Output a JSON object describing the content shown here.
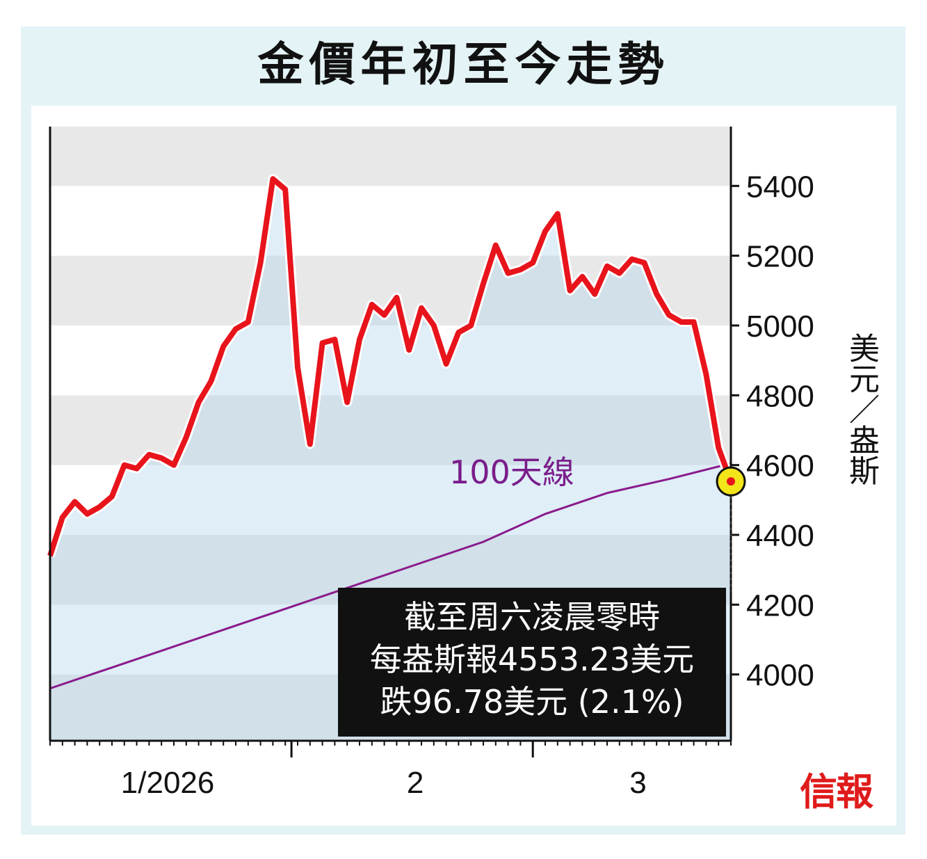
{
  "title": "金價年初至今走勢",
  "unit_label": "美元／盎斯",
  "ma_label": "100天線",
  "note": {
    "line1": "截至周六凌晨零時",
    "line2": "每盎斯報4553.23美元",
    "line3": "跌96.78美元 (2.1%)"
  },
  "logo": "信報",
  "colors": {
    "price_line": "#e8141c",
    "ma_line": "#8a1a8c",
    "area_fill": "#dbeefa",
    "band_grey": "#e8e8e8",
    "marker": "#f2e51a"
  },
  "chart_data": {
    "type": "line",
    "x_tick_labels": [
      "1/2026",
      "2",
      "3"
    ],
    "y_ticks": [
      4000,
      4200,
      4400,
      4600,
      4800,
      5000,
      5200,
      5400
    ],
    "ylim": [
      3810,
      5570
    ],
    "grid": "alternating horizontal bands",
    "series": [
      {
        "name": "",
        "x": [
          0,
          1,
          2,
          3,
          4,
          5,
          6,
          7,
          8,
          9,
          10,
          11,
          12,
          13,
          14,
          15,
          16,
          17,
          18,
          19,
          20,
          21,
          22,
          23,
          24,
          25,
          26,
          27,
          28,
          29,
          30,
          31,
          32,
          33,
          34,
          35,
          36,
          37,
          38,
          39,
          40,
          41,
          42,
          43,
          44,
          45,
          46,
          47,
          48,
          49,
          50,
          51,
          52,
          53,
          54,
          55
        ],
        "values": [
          4340,
          4450,
          4495,
          4460,
          4480,
          4510,
          4600,
          4590,
          4630,
          4620,
          4600,
          4680,
          4780,
          4840,
          4940,
          4990,
          5010,
          5180,
          5420,
          5390,
          4880,
          4660,
          4950,
          4960,
          4780,
          4960,
          5060,
          5030,
          5080,
          4930,
          5050,
          5000,
          4890,
          4980,
          5000,
          5120,
          5230,
          5150,
          5160,
          5180,
          5270,
          5320,
          5100,
          5140,
          5090,
          5170,
          5150,
          5190,
          5180,
          5090,
          5030,
          5010,
          5010,
          4860,
          4650,
          4553.23
        ]
      },
      {
        "name": "100天線",
        "x": [
          0,
          5,
          10,
          15,
          20,
          25,
          30,
          35,
          40,
          45,
          50,
          55
        ],
        "values": [
          3960,
          4020,
          4080,
          4140,
          4200,
          4260,
          4320,
          4380,
          4460,
          4520,
          4560,
          4605
        ]
      }
    ],
    "x_tick_positions": [
      0,
      19.5,
      39
    ],
    "x_label_positions": [
      9.5,
      29.5,
      47.5
    ],
    "minor_ticks": 56,
    "marker_last_value": 4553.23
  }
}
